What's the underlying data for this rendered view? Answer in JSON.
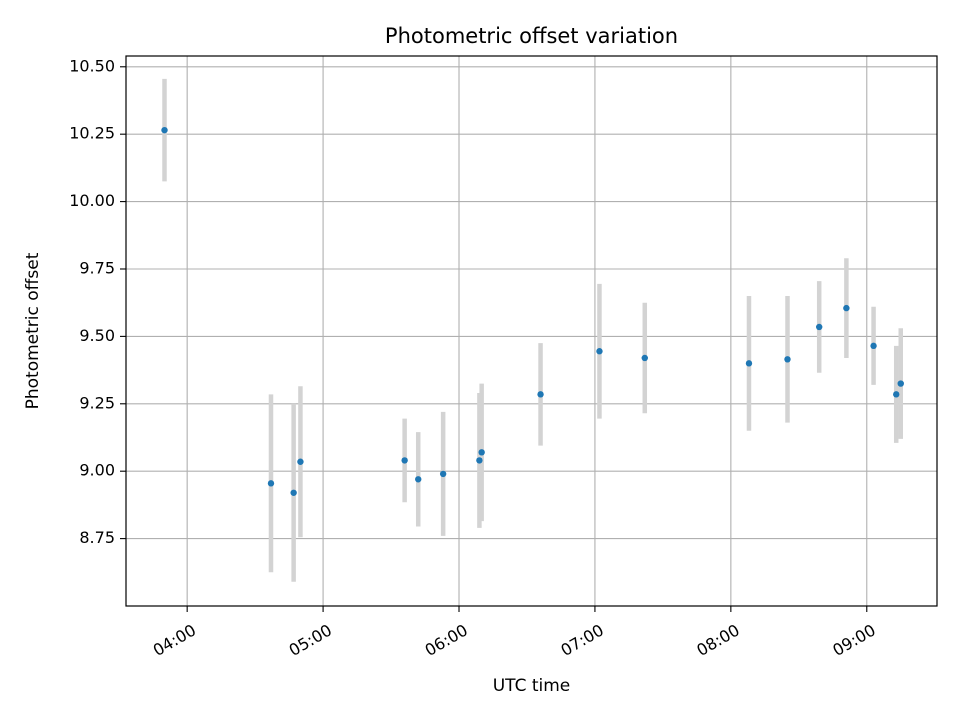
{
  "chart_data": {
    "type": "scatter",
    "title": "Photometric offset variation",
    "xlabel": "UTC time",
    "ylabel": "Photometric offset",
    "x_ticks": [
      "04:00",
      "05:00",
      "06:00",
      "07:00",
      "08:00",
      "09:00"
    ],
    "y_ticks": [
      "8.75",
      "9.00",
      "9.25",
      "9.50",
      "9.75",
      "10.00",
      "10.25",
      "10.50"
    ],
    "xlim": [
      "03:33",
      "09:31"
    ],
    "ylim": [
      8.5,
      10.54
    ],
    "grid": true,
    "colors": {
      "point": "#1f77b4",
      "errorbar": "#d3d3d3",
      "grid": "#b0b0b0"
    },
    "points": [
      {
        "x": "03:50",
        "y": 10.265,
        "err": 0.19
      },
      {
        "x": "04:37",
        "y": 8.955,
        "err": 0.33
      },
      {
        "x": "04:47",
        "y": 8.92,
        "err": 0.33
      },
      {
        "x": "04:50",
        "y": 9.035,
        "err": 0.28
      },
      {
        "x": "05:36",
        "y": 9.04,
        "err": 0.155
      },
      {
        "x": "05:42",
        "y": 8.97,
        "err": 0.175
      },
      {
        "x": "05:53",
        "y": 8.99,
        "err": 0.23
      },
      {
        "x": "06:09",
        "y": 9.04,
        "err": 0.25
      },
      {
        "x": "06:10",
        "y": 9.07,
        "err": 0.255
      },
      {
        "x": "06:36",
        "y": 9.285,
        "err": 0.19
      },
      {
        "x": "07:02",
        "y": 9.445,
        "err": 0.25
      },
      {
        "x": "07:22",
        "y": 9.42,
        "err": 0.205
      },
      {
        "x": "08:08",
        "y": 9.4,
        "err": 0.25
      },
      {
        "x": "08:25",
        "y": 9.415,
        "err": 0.235
      },
      {
        "x": "08:39",
        "y": 9.535,
        "err": 0.17
      },
      {
        "x": "08:51",
        "y": 9.605,
        "err": 0.185
      },
      {
        "x": "09:03",
        "y": 9.465,
        "err": 0.145
      },
      {
        "x": "09:13",
        "y": 9.285,
        "err": 0.18
      },
      {
        "x": "09:15",
        "y": 9.325,
        "err": 0.205
      }
    ]
  }
}
